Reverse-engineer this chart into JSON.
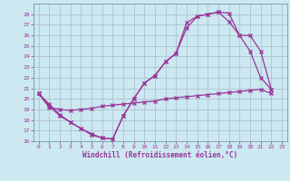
{
  "title": "",
  "xlabel": "Windchill (Refroidissement éolien,°C)",
  "bg_color": "#cce8f0",
  "grid_color": "#aabbcc",
  "line_color": "#993399",
  "xlim": [
    -0.5,
    23.5
  ],
  "ylim": [
    16,
    29
  ],
  "xticks": [
    0,
    1,
    2,
    3,
    4,
    5,
    6,
    7,
    8,
    9,
    10,
    11,
    12,
    13,
    14,
    15,
    16,
    17,
    18,
    19,
    20,
    21,
    22,
    23
  ],
  "yticks": [
    16,
    17,
    18,
    19,
    20,
    21,
    22,
    23,
    24,
    25,
    26,
    27,
    28
  ],
  "series1_x": [
    0,
    1,
    2,
    3,
    4,
    5,
    6,
    7,
    8,
    9,
    10,
    11,
    12,
    13,
    14,
    15,
    16,
    17,
    18,
    19,
    20,
    21,
    22
  ],
  "series1_y": [
    20.5,
    19.3,
    18.4,
    17.8,
    17.2,
    16.6,
    16.3,
    16.2,
    18.4,
    20.0,
    21.5,
    22.2,
    23.5,
    24.3,
    26.7,
    27.8,
    28.0,
    28.2,
    28.1,
    26.0,
    24.5,
    22.0,
    20.9
  ],
  "series2_x": [
    0,
    1,
    2,
    3,
    4,
    5,
    6,
    7,
    8,
    9,
    10,
    11,
    12,
    13,
    14,
    15,
    16,
    17,
    18,
    19,
    20,
    21,
    22
  ],
  "series2_y": [
    20.5,
    19.5,
    18.5,
    17.8,
    17.2,
    16.7,
    16.3,
    16.2,
    18.4,
    20.0,
    21.5,
    22.2,
    23.5,
    24.3,
    27.2,
    27.8,
    28.0,
    28.2,
    27.3,
    26.0,
    26.0,
    24.5,
    20.9
  ],
  "series3_x": [
    0,
    1,
    2,
    3,
    4,
    5,
    6,
    7,
    8,
    9,
    10,
    11,
    12,
    13,
    14,
    15,
    16,
    17,
    18,
    19,
    20,
    21,
    22
  ],
  "series3_y": [
    20.5,
    19.2,
    19.0,
    18.9,
    19.0,
    19.1,
    19.3,
    19.4,
    19.5,
    19.6,
    19.7,
    19.8,
    20.0,
    20.1,
    20.2,
    20.3,
    20.4,
    20.5,
    20.6,
    20.7,
    20.8,
    20.9,
    20.5
  ]
}
